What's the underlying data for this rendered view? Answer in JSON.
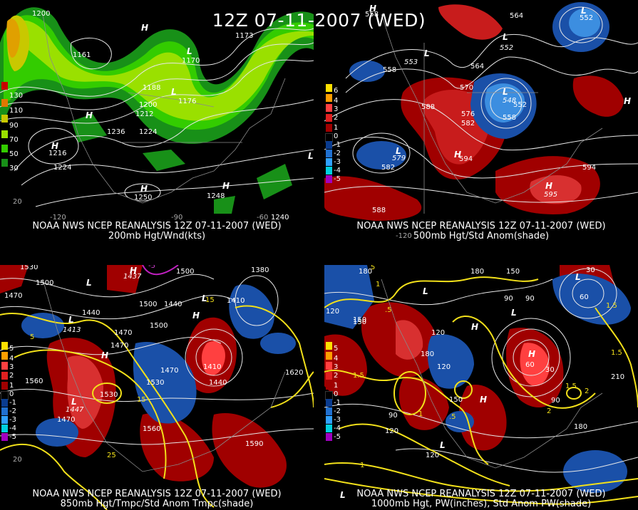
{
  "title": "12Z 07-11-2007 (WED)",
  "panels": [
    {
      "id": "tl",
      "caption_line1": "NOAA NWS NCEP REANALYSIS 12Z 07-11-2007 (WED)",
      "caption_line2": "200mb Hgt/Wnd(kts)",
      "legend": {
        "labels": [
          "130",
          "110",
          "90",
          "70",
          "50",
          "30"
        ],
        "colors": [
          "#c80000",
          "#e07800",
          "#c8c800",
          "#9ae000",
          "#33cc00",
          "#189018"
        ]
      },
      "height_labels": [
        "1200",
        "1188",
        "1200",
        "1212",
        "1236",
        "1224",
        "1224",
        "1216",
        "1248",
        "1250",
        "1240",
        "1170",
        "1173",
        "1176",
        "1161"
      ],
      "pressure_centers": [
        "H",
        "H",
        "L",
        "H",
        "L",
        "H",
        "H",
        "L"
      ],
      "lon_labels": [
        "-120",
        "-90",
        "-60"
      ],
      "lat_labels": [
        "20"
      ]
    },
    {
      "id": "tr",
      "caption_line1": "NOAA NWS NCEP REANALYSIS 12Z 07-11-2007 (WED)",
      "caption_line2": "500mb Hgt/Std Anom(shade)",
      "legend": {
        "labels": [
          "6",
          "4",
          "3",
          "2",
          "1",
          "0",
          "-1",
          "-2",
          "-3",
          "-4",
          "-5"
        ],
        "colors": [
          "#ffe000",
          "#ff9e00",
          "#ff4040",
          "#e02020",
          "#a00000",
          "#000000",
          "#0a3c90",
          "#2070d0",
          "#30a0ff",
          "#00d0e0",
          "#a000c0"
        ]
      },
      "height_labels": [
        "558",
        "564",
        "570",
        "576",
        "582",
        "588",
        "594",
        "588",
        "582",
        "579",
        "594",
        "552",
        "558",
        "564",
        "548",
        "552",
        "558",
        "595",
        "553",
        "552"
      ],
      "pressure_centers": [
        "H",
        "L",
        "L",
        "L",
        "H",
        "L",
        "H",
        "L",
        "H"
      ],
      "lon_labels": [
        "-120"
      ]
    },
    {
      "id": "bl",
      "caption_line1": "NOAA NWS NCEP REANALYSIS 12Z 07-11-2007 (WED)",
      "caption_line2": "850mb Hgt/Tmpc/Std Anom Tmpc(shade)",
      "legend": {
        "labels": [
          "5",
          "4",
          "3",
          "2",
          "1",
          "0",
          "-1",
          "-2",
          "-3",
          "-4",
          "-5"
        ],
        "colors": [
          "#ffe000",
          "#ff9e00",
          "#ff4040",
          "#e02020",
          "#a00000",
          "#000000",
          "#0a3c90",
          "#2070d0",
          "#30a0ff",
          "#00d0e0",
          "#a000c0"
        ]
      },
      "height_labels": [
        "1530",
        "1500",
        "1470",
        "1440",
        "1470",
        "1560",
        "1530",
        "1470",
        "1500",
        "1440",
        "1470",
        "1530",
        "1500",
        "1560",
        "1620",
        "1590",
        "1410",
        "1440",
        "1410",
        "1470",
        "1500",
        "1380",
        "1413",
        "1447",
        "1437"
      ],
      "temp_labels": [
        "5",
        "-5",
        "15",
        "15",
        "25"
      ],
      "pressure_centers": [
        "H",
        "L",
        "L",
        "H",
        "L",
        "H",
        "L"
      ],
      "lat_labels": [
        "20"
      ]
    },
    {
      "id": "br",
      "caption_line1": "NOAA NWS NCEP REANALYSIS 12Z 07-11-2007 (WED)",
      "caption_line2": "1000mb Hgt, PW(inches), Std Anom PW(shade)",
      "legend": {
        "labels": [
          "5",
          "4",
          "3",
          "2",
          "1",
          "0",
          "-1",
          "-2",
          "-3",
          "-4",
          "-5"
        ],
        "colors": [
          "#ffe000",
          "#ff9e00",
          "#ff4040",
          "#e02020",
          "#a00000",
          "#000000",
          "#0a3c90",
          "#2070d0",
          "#30a0ff",
          "#00d0e0",
          "#a000c0"
        ]
      },
      "height_labels": [
        "180",
        "120",
        "150",
        "180",
        "150",
        "120",
        "90",
        "60",
        "30",
        "90",
        "120",
        "150",
        "180",
        "210",
        "150",
        "120",
        "90",
        "60",
        "30",
        "180",
        "120",
        "90"
      ],
      "pw_labels": [
        "5",
        "1",
        ".5",
        "1.5",
        "1.5",
        "1",
        "2",
        "1.5",
        ".5",
        "1",
        "1.5",
        "2"
      ],
      "pressure_centers": [
        "L",
        "L",
        "H",
        "H",
        "L",
        "H",
        "L",
        "L"
      ]
    }
  ]
}
